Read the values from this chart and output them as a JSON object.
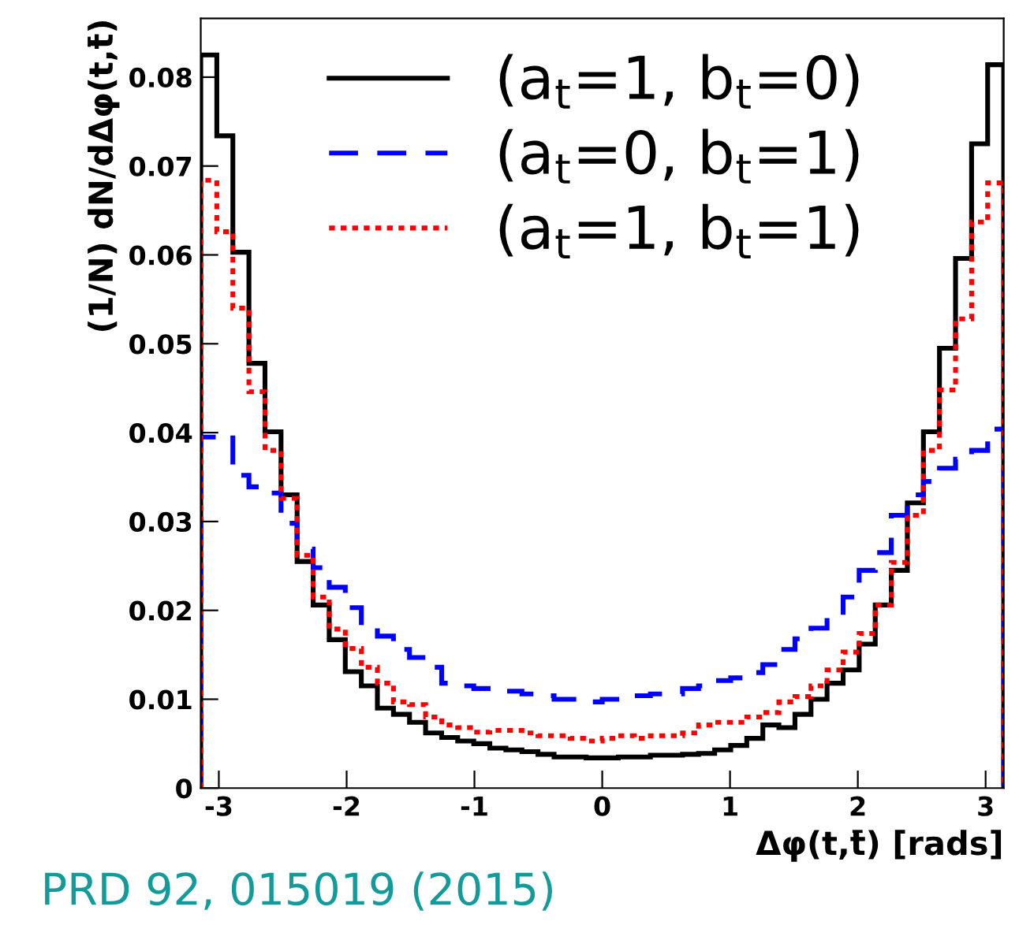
{
  "chart_data": {
    "type": "histogram",
    "xlabel": "Δφ(t,t̄) [rads]",
    "ylabel": "(1/N) dN/dΔφ(t,t̄)",
    "bins": [
      -3.1416,
      -3.0159,
      -2.8903,
      -2.7646,
      -2.6389,
      -2.5133,
      -2.3876,
      -2.2619,
      -2.1363,
      -2.0106,
      -1.885,
      -1.7593,
      -1.6336,
      -1.508,
      -1.3823,
      -1.2566,
      -1.131,
      -1.0053,
      -0.8796,
      -0.754,
      -0.6283,
      -0.5027,
      -0.377,
      -0.2513,
      -0.1257,
      0,
      0.1257,
      0.2513,
      0.377,
      0.5027,
      0.6283,
      0.754,
      0.8796,
      1.0053,
      1.131,
      1.2566,
      1.3823,
      1.508,
      1.6336,
      1.7593,
      1.885,
      2.0106,
      2.1363,
      2.2619,
      2.3876,
      2.5133,
      2.6389,
      2.7646,
      2.8903,
      3.0159,
      3.1416
    ],
    "series": [
      {
        "name": "(a$_{t}$=1, b$_{t}$=0)",
        "color": "#000000",
        "line_style": "solid",
        "values": [
          0.0825,
          0.0734,
          0.0603,
          0.0478,
          0.0401,
          0.033,
          0.0255,
          0.0206,
          0.0167,
          0.0131,
          0.0115,
          0.009,
          0.0083,
          0.0074,
          0.0062,
          0.0057,
          0.0053,
          0.005,
          0.0045,
          0.0043,
          0.0041,
          0.0038,
          0.0035,
          0.0035,
          0.0034,
          0.0034,
          0.0035,
          0.0035,
          0.0037,
          0.0037,
          0.0038,
          0.0039,
          0.0043,
          0.0048,
          0.0056,
          0.0071,
          0.0068,
          0.0083,
          0.01,
          0.0118,
          0.0133,
          0.0162,
          0.0206,
          0.0245,
          0.0321,
          0.0401,
          0.0495,
          0.0596,
          0.0725,
          0.0814
        ]
      },
      {
        "name": "(a$_{t}$=0, b$_{t}$=1)",
        "color": "#0000ff",
        "line_style": "dashed",
        "values": [
          0.0395,
          0.0397,
          0.0352,
          0.0339,
          0.0332,
          0.0298,
          0.0269,
          0.0248,
          0.0226,
          0.0203,
          0.0183,
          0.0171,
          0.0156,
          0.0147,
          0.0136,
          0.0118,
          0.0115,
          0.0112,
          0.0112,
          0.0109,
          0.0106,
          0.0104,
          0.01,
          0.01,
          0.0097,
          0.01,
          0.01,
          0.0104,
          0.0106,
          0.0106,
          0.0112,
          0.0115,
          0.0121,
          0.0124,
          0.013,
          0.0139,
          0.0156,
          0.0168,
          0.018,
          0.0192,
          0.0215,
          0.0245,
          0.0265,
          0.0307,
          0.033,
          0.0345,
          0.036,
          0.037,
          0.038,
          0.0404
        ]
      },
      {
        "name": "(a$_{t}$=1, b$_{t}$=1)",
        "color": "#ff0000",
        "line_style": "dotted",
        "values": [
          0.0684,
          0.0626,
          0.054,
          0.0446,
          0.038,
          0.0326,
          0.0262,
          0.0215,
          0.0179,
          0.0157,
          0.0136,
          0.0118,
          0.0097,
          0.0094,
          0.008,
          0.0071,
          0.0068,
          0.0063,
          0.0065,
          0.0065,
          0.0062,
          0.0059,
          0.0059,
          0.0056,
          0.0053,
          0.0056,
          0.0059,
          0.0056,
          0.0059,
          0.0059,
          0.0062,
          0.0071,
          0.0074,
          0.0074,
          0.008,
          0.0085,
          0.0097,
          0.0103,
          0.0115,
          0.0133,
          0.0153,
          0.0174,
          0.0206,
          0.0254,
          0.0307,
          0.038,
          0.0448,
          0.0528,
          0.0637,
          0.0681
        ]
      }
    ],
    "xlim": [
      -3.1416,
      3.1416
    ],
    "xticks": [
      -3,
      -2,
      -1,
      0,
      1,
      2,
      3
    ],
    "ylim": [
      0,
      0.0866
    ],
    "yticks": [
      0,
      0.01,
      0.02,
      0.03,
      0.04,
      0.05,
      0.06,
      0.07,
      0.08
    ],
    "grid": false,
    "legend": "top right",
    "annotations": [
      "PRD 92, 015019 (2015)"
    ]
  }
}
